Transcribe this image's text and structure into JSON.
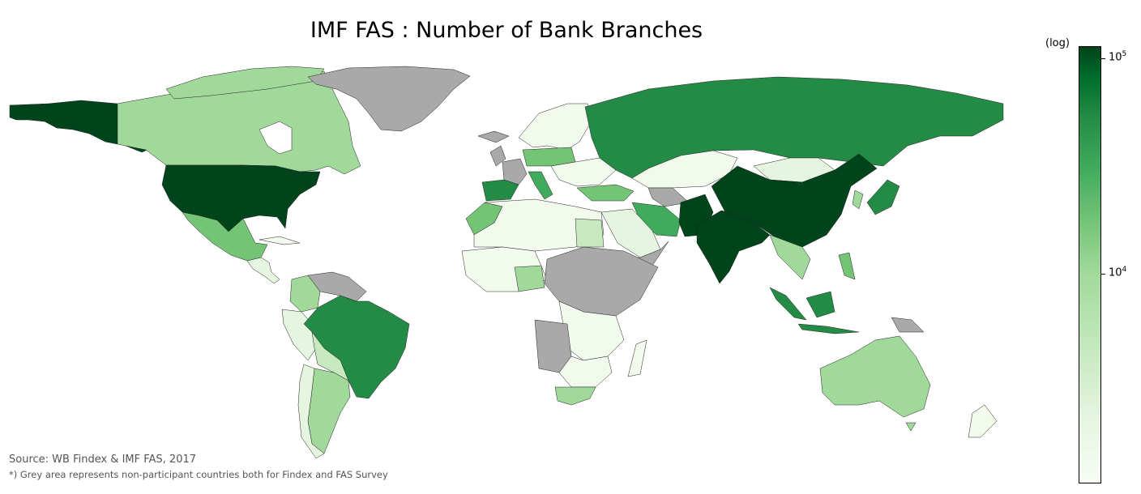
{
  "title": "IMF FAS : Number of Bank Branches",
  "colorbar": {
    "unit_label": "(log)",
    "ticks": [
      {
        "base": "10",
        "exp": "5",
        "value": 100000
      },
      {
        "base": "10",
        "exp": "4",
        "value": 10000
      }
    ],
    "colors": [
      "#f7fcf5",
      "#e5f5e0",
      "#c7e9c0",
      "#a1d99b",
      "#74c476",
      "#41ab5d",
      "#238b45",
      "#006d2c",
      "#00441b"
    ]
  },
  "source": "Source: WB Findex & IMF FAS, 2017",
  "note": "*) Grey area represents non-participant countries both for Findex and FAS Survey",
  "colors": {
    "missing": "#a9a9a9",
    "darkest": "#00441b",
    "dark": "#238b45",
    "medium": "#41ab5d",
    "light": "#a1d99b",
    "lighter": "#c7e9c0",
    "palest": "#f2faee"
  }
}
